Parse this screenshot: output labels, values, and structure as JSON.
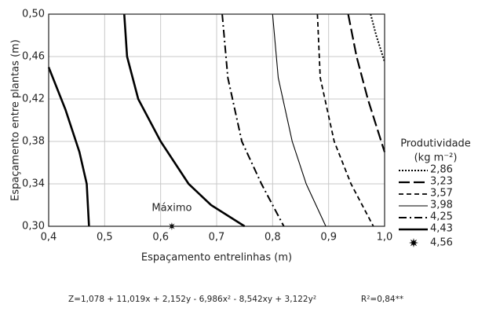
{
  "chart_data": {
    "type": "contour",
    "x_label": "Espaçamento entrelinhas (m)",
    "y_label": "Espaçamento entre plantas (m)",
    "xlim": [
      0.4,
      1.0
    ],
    "ylim": [
      0.3,
      0.5
    ],
    "xticks": [
      {
        "value": 0.4,
        "label": "0,4"
      },
      {
        "value": 0.5,
        "label": "0,5"
      },
      {
        "value": 0.6,
        "label": "0,6"
      },
      {
        "value": 0.7,
        "label": "0,7"
      },
      {
        "value": 0.8,
        "label": "0,8"
      },
      {
        "value": 0.9,
        "label": "0,9"
      },
      {
        "value": 1.0,
        "label": "1,0"
      }
    ],
    "yticks": [
      {
        "value": 0.3,
        "label": "0,30"
      },
      {
        "value": 0.34,
        "label": "0,34"
      },
      {
        "value": 0.38,
        "label": "0,38"
      },
      {
        "value": 0.42,
        "label": "0,42"
      },
      {
        "value": 0.46,
        "label": "0,46"
      },
      {
        "value": 0.5,
        "label": "0,50"
      }
    ],
    "grid": true,
    "legend_title": "Produtividade",
    "legend_unit": "(kg m⁻²)",
    "series": [
      {
        "name": "2,86",
        "color": "#000",
        "dash": "2,2",
        "width": 2,
        "x": [
          0.975,
          0.985,
          1.0
        ],
        "y": [
          0.5,
          0.48,
          0.455
        ]
      },
      {
        "name": "3,23",
        "color": "#000",
        "dash": "14,5",
        "width": 2.2,
        "x": [
          0.935,
          0.95,
          0.97,
          1.0
        ],
        "y": [
          0.5,
          0.46,
          0.42,
          0.37
        ]
      },
      {
        "name": "3,57",
        "color": "#000",
        "dash": "6,4",
        "width": 1.8,
        "x": [
          0.88,
          0.885,
          0.91,
          0.94,
          0.98
        ],
        "y": [
          0.5,
          0.44,
          0.38,
          0.34,
          0.3
        ]
      },
      {
        "name": "3,98",
        "color": "#000",
        "dash": "",
        "width": 1.1,
        "x": [
          0.8,
          0.81,
          0.835,
          0.86,
          0.895
        ],
        "y": [
          0.5,
          0.44,
          0.38,
          0.34,
          0.3
        ]
      },
      {
        "name": "4,25",
        "color": "#000",
        "dash": "10,4,2,4",
        "width": 2,
        "x": [
          0.71,
          0.72,
          0.745,
          0.78,
          0.82
        ],
        "y": [
          0.5,
          0.44,
          0.38,
          0.34,
          0.3
        ]
      },
      {
        "name": "4,43",
        "color": "#000",
        "dash": "",
        "width": 2.6,
        "x": [
          0.4,
          0.43,
          0.455,
          0.468,
          0.472,
          null,
          0.535,
          0.54,
          0.56,
          0.6,
          0.65,
          0.69,
          0.75
        ],
        "y": [
          0.45,
          0.41,
          0.37,
          0.34,
          0.3,
          null,
          0.5,
          0.46,
          0.42,
          0.38,
          0.34,
          0.32,
          0.3
        ]
      }
    ],
    "max_point": {
      "name": "4,56",
      "label": "Máximo",
      "x": 0.62,
      "y": 0.3
    },
    "equation": "Z=1,078 + 11,019x + 2,152y - 6,986x² - 8,542xy + 3,122y²",
    "r2": "R²=0,84**"
  }
}
